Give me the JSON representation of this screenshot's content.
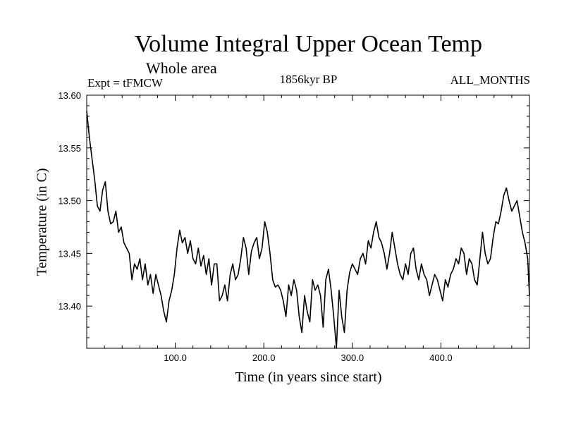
{
  "chart_data": {
    "type": "line",
    "title": "Volume Integral Upper Ocean Temp",
    "subtitle": "Whole area",
    "experiment": "Expt = tFMCW",
    "period": "1856kyr BP",
    "months": "ALL_MONTHS",
    "xlabel": "Time (in years since start)",
    "ylabel": "Temperature (in C)",
    "xlim": [
      0,
      500
    ],
    "ylim": [
      13.36,
      13.6
    ],
    "xticks": [
      {
        "value": 100,
        "label": "100.0"
      },
      {
        "value": 200,
        "label": "200.0"
      },
      {
        "value": 300,
        "label": "300.0"
      },
      {
        "value": 400,
        "label": "400.0"
      }
    ],
    "yticks": [
      {
        "value": 13.4,
        "label": "13.40"
      },
      {
        "value": 13.45,
        "label": "13.45"
      },
      {
        "value": 13.5,
        "label": "13.50"
      },
      {
        "value": 13.55,
        "label": "13.55"
      },
      {
        "value": 13.6,
        "label": "13.60"
      }
    ],
    "series": [
      {
        "name": "upper ocean temp",
        "x": [
          0,
          3,
          6,
          9,
          12,
          15,
          18,
          21,
          24,
          27,
          30,
          33,
          36,
          39,
          42,
          45,
          48,
          51,
          54,
          57,
          60,
          63,
          66,
          69,
          72,
          75,
          78,
          81,
          84,
          87,
          90,
          93,
          96,
          99,
          102,
          105,
          108,
          111,
          114,
          117,
          120,
          123,
          126,
          129,
          132,
          135,
          138,
          141,
          144,
          147,
          150,
          153,
          156,
          159,
          162,
          165,
          168,
          171,
          174,
          177,
          180,
          183,
          186,
          189,
          192,
          195,
          198,
          201,
          204,
          207,
          210,
          213,
          216,
          219,
          222,
          225,
          228,
          231,
          234,
          237,
          240,
          243,
          246,
          249,
          252,
          255,
          258,
          261,
          264,
          267,
          270,
          273,
          276,
          279,
          282,
          285,
          288,
          291,
          294,
          297,
          300,
          303,
          306,
          309,
          312,
          315,
          318,
          321,
          324,
          327,
          330,
          333,
          336,
          339,
          342,
          345,
          348,
          351,
          354,
          357,
          360,
          363,
          366,
          369,
          372,
          375,
          378,
          381,
          384,
          387,
          390,
          393,
          396,
          399,
          402,
          405,
          408,
          411,
          414,
          417,
          420,
          423,
          426,
          429,
          432,
          435,
          438,
          441,
          444,
          447,
          450,
          453,
          456,
          459,
          462,
          465,
          468,
          471,
          474,
          477,
          480,
          483,
          486,
          489,
          492,
          495,
          498,
          500
        ],
        "values": [
          13.585,
          13.56,
          13.54,
          13.52,
          13.495,
          13.49,
          13.51,
          13.518,
          13.49,
          13.478,
          13.48,
          13.49,
          13.47,
          13.475,
          13.46,
          13.455,
          13.45,
          13.425,
          13.44,
          13.435,
          13.445,
          13.425,
          13.44,
          13.42,
          13.43,
          13.412,
          13.43,
          13.42,
          13.41,
          13.395,
          13.385,
          13.405,
          13.415,
          13.43,
          13.455,
          13.472,
          13.46,
          13.465,
          13.45,
          13.462,
          13.445,
          13.44,
          13.455,
          13.438,
          13.448,
          13.43,
          13.445,
          13.42,
          13.44,
          13.44,
          13.405,
          13.41,
          13.42,
          13.405,
          13.43,
          13.44,
          13.425,
          13.43,
          13.445,
          13.465,
          13.455,
          13.43,
          13.452,
          13.46,
          13.465,
          13.445,
          13.455,
          13.48,
          13.47,
          13.45,
          13.425,
          13.418,
          13.42,
          13.415,
          13.405,
          13.39,
          13.42,
          13.41,
          13.425,
          13.415,
          13.39,
          13.375,
          13.41,
          13.395,
          13.385,
          13.425,
          13.415,
          13.42,
          13.41,
          13.38,
          13.425,
          13.435,
          13.415,
          13.39,
          13.36,
          13.415,
          13.39,
          13.375,
          13.415,
          13.432,
          13.44,
          13.435,
          13.43,
          13.445,
          13.45,
          13.44,
          13.462,
          13.455,
          13.47,
          13.48,
          13.465,
          13.46,
          13.45,
          13.435,
          13.45,
          13.47,
          13.455,
          13.44,
          13.43,
          13.425,
          13.44,
          13.43,
          13.45,
          13.455,
          13.435,
          13.425,
          13.44,
          13.43,
          13.425,
          13.41,
          13.42,
          13.43,
          13.425,
          13.415,
          13.405,
          13.425,
          13.418,
          13.43,
          13.435,
          13.445,
          13.44,
          13.455,
          13.45,
          13.43,
          13.445,
          13.44,
          13.425,
          13.42,
          13.445,
          13.47,
          13.45,
          13.44,
          13.445,
          13.465,
          13.48,
          13.478,
          13.49,
          13.505,
          13.512,
          13.5,
          13.49,
          13.495,
          13.5,
          13.485,
          13.47,
          13.46,
          13.445,
          13.41
        ]
      }
    ]
  }
}
